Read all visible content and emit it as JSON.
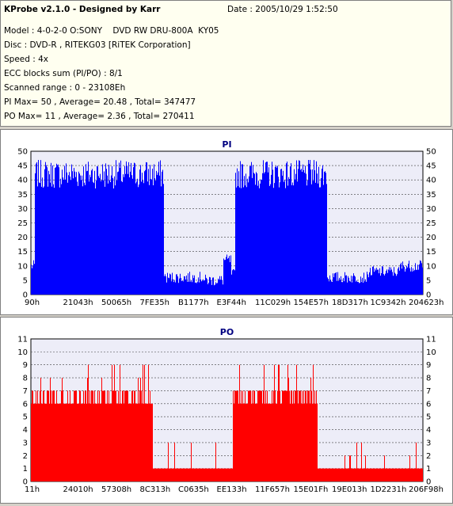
{
  "header": {
    "title": "KProbe v2.1.0 - Designed by Karr",
    "date": "Date : 2005/10/29 1:52:50",
    "lines": [
      "Model : 4-0-2-0 O:SONY    DVD RW DRU-800A  KY05",
      "Disc : DVD-R , RITEKG03 [RiTEK Corporation]",
      "Speed : 4x",
      "ECC blocks sum (PI/PO) : 8/1",
      "Scanned range : 0 - 23108Eh",
      "PI Max= 50 , Average= 20.48 , Total= 347477",
      "PO Max= 11 , Average= 2.36 , Total= 270411"
    ]
  },
  "colors": {
    "pi": "#0000ff",
    "po": "#ff0000",
    "plot_bg": "#ededf8",
    "grid": "#404040"
  },
  "chart_data": [
    {
      "type": "bar",
      "title": "PI",
      "ylim": [
        0,
        50
      ],
      "yticks": [
        0,
        5,
        10,
        15,
        20,
        25,
        30,
        35,
        40,
        45,
        50
      ],
      "xticks": [
        "90h",
        "21043h",
        "50065h",
        "7FE35h",
        "B1177h",
        "E3F44h",
        "11C029h",
        "154E57h",
        "18D317h",
        "1C9342h",
        "204623h"
      ],
      "segments": [
        {
          "from": 0.0,
          "to": 0.01,
          "level": 10
        },
        {
          "from": 0.01,
          "to": 0.338,
          "level": 42
        },
        {
          "from": 0.338,
          "to": 0.44,
          "level": 6
        },
        {
          "from": 0.44,
          "to": 0.49,
          "level": 5
        },
        {
          "from": 0.49,
          "to": 0.51,
          "level": 12
        },
        {
          "from": 0.51,
          "to": 0.52,
          "level": 7
        },
        {
          "from": 0.52,
          "to": 0.755,
          "level": 42
        },
        {
          "from": 0.755,
          "to": 0.86,
          "level": 6
        },
        {
          "from": 0.86,
          "to": 0.94,
          "level": 8
        },
        {
          "from": 0.94,
          "to": 1.0,
          "level": 10
        }
      ]
    },
    {
      "type": "bar",
      "title": "PO",
      "ylim": [
        0,
        11
      ],
      "yticks": [
        0,
        1,
        2,
        3,
        4,
        5,
        6,
        7,
        8,
        9,
        10,
        11
      ],
      "xticks": [
        "11h",
        "24010h",
        "57308h",
        "8C313h",
        "C0635h",
        "EE133h",
        "11F657h",
        "15E01Fh",
        "19E013h",
        "1D2231h",
        "206F98h"
      ],
      "segments": [
        {
          "from": 0.0,
          "to": 0.31,
          "level": 6
        },
        {
          "from": 0.31,
          "to": 0.38,
          "level": 1
        },
        {
          "from": 0.38,
          "to": 0.4,
          "level": 1.5
        },
        {
          "from": 0.4,
          "to": 0.48,
          "level": 1
        },
        {
          "from": 0.48,
          "to": 0.5,
          "level": 3
        },
        {
          "from": 0.5,
          "to": 0.515,
          "level": 1
        },
        {
          "from": 0.515,
          "to": 0.73,
          "level": 6.5
        },
        {
          "from": 0.73,
          "to": 1.0,
          "level": 1
        }
      ]
    }
  ]
}
